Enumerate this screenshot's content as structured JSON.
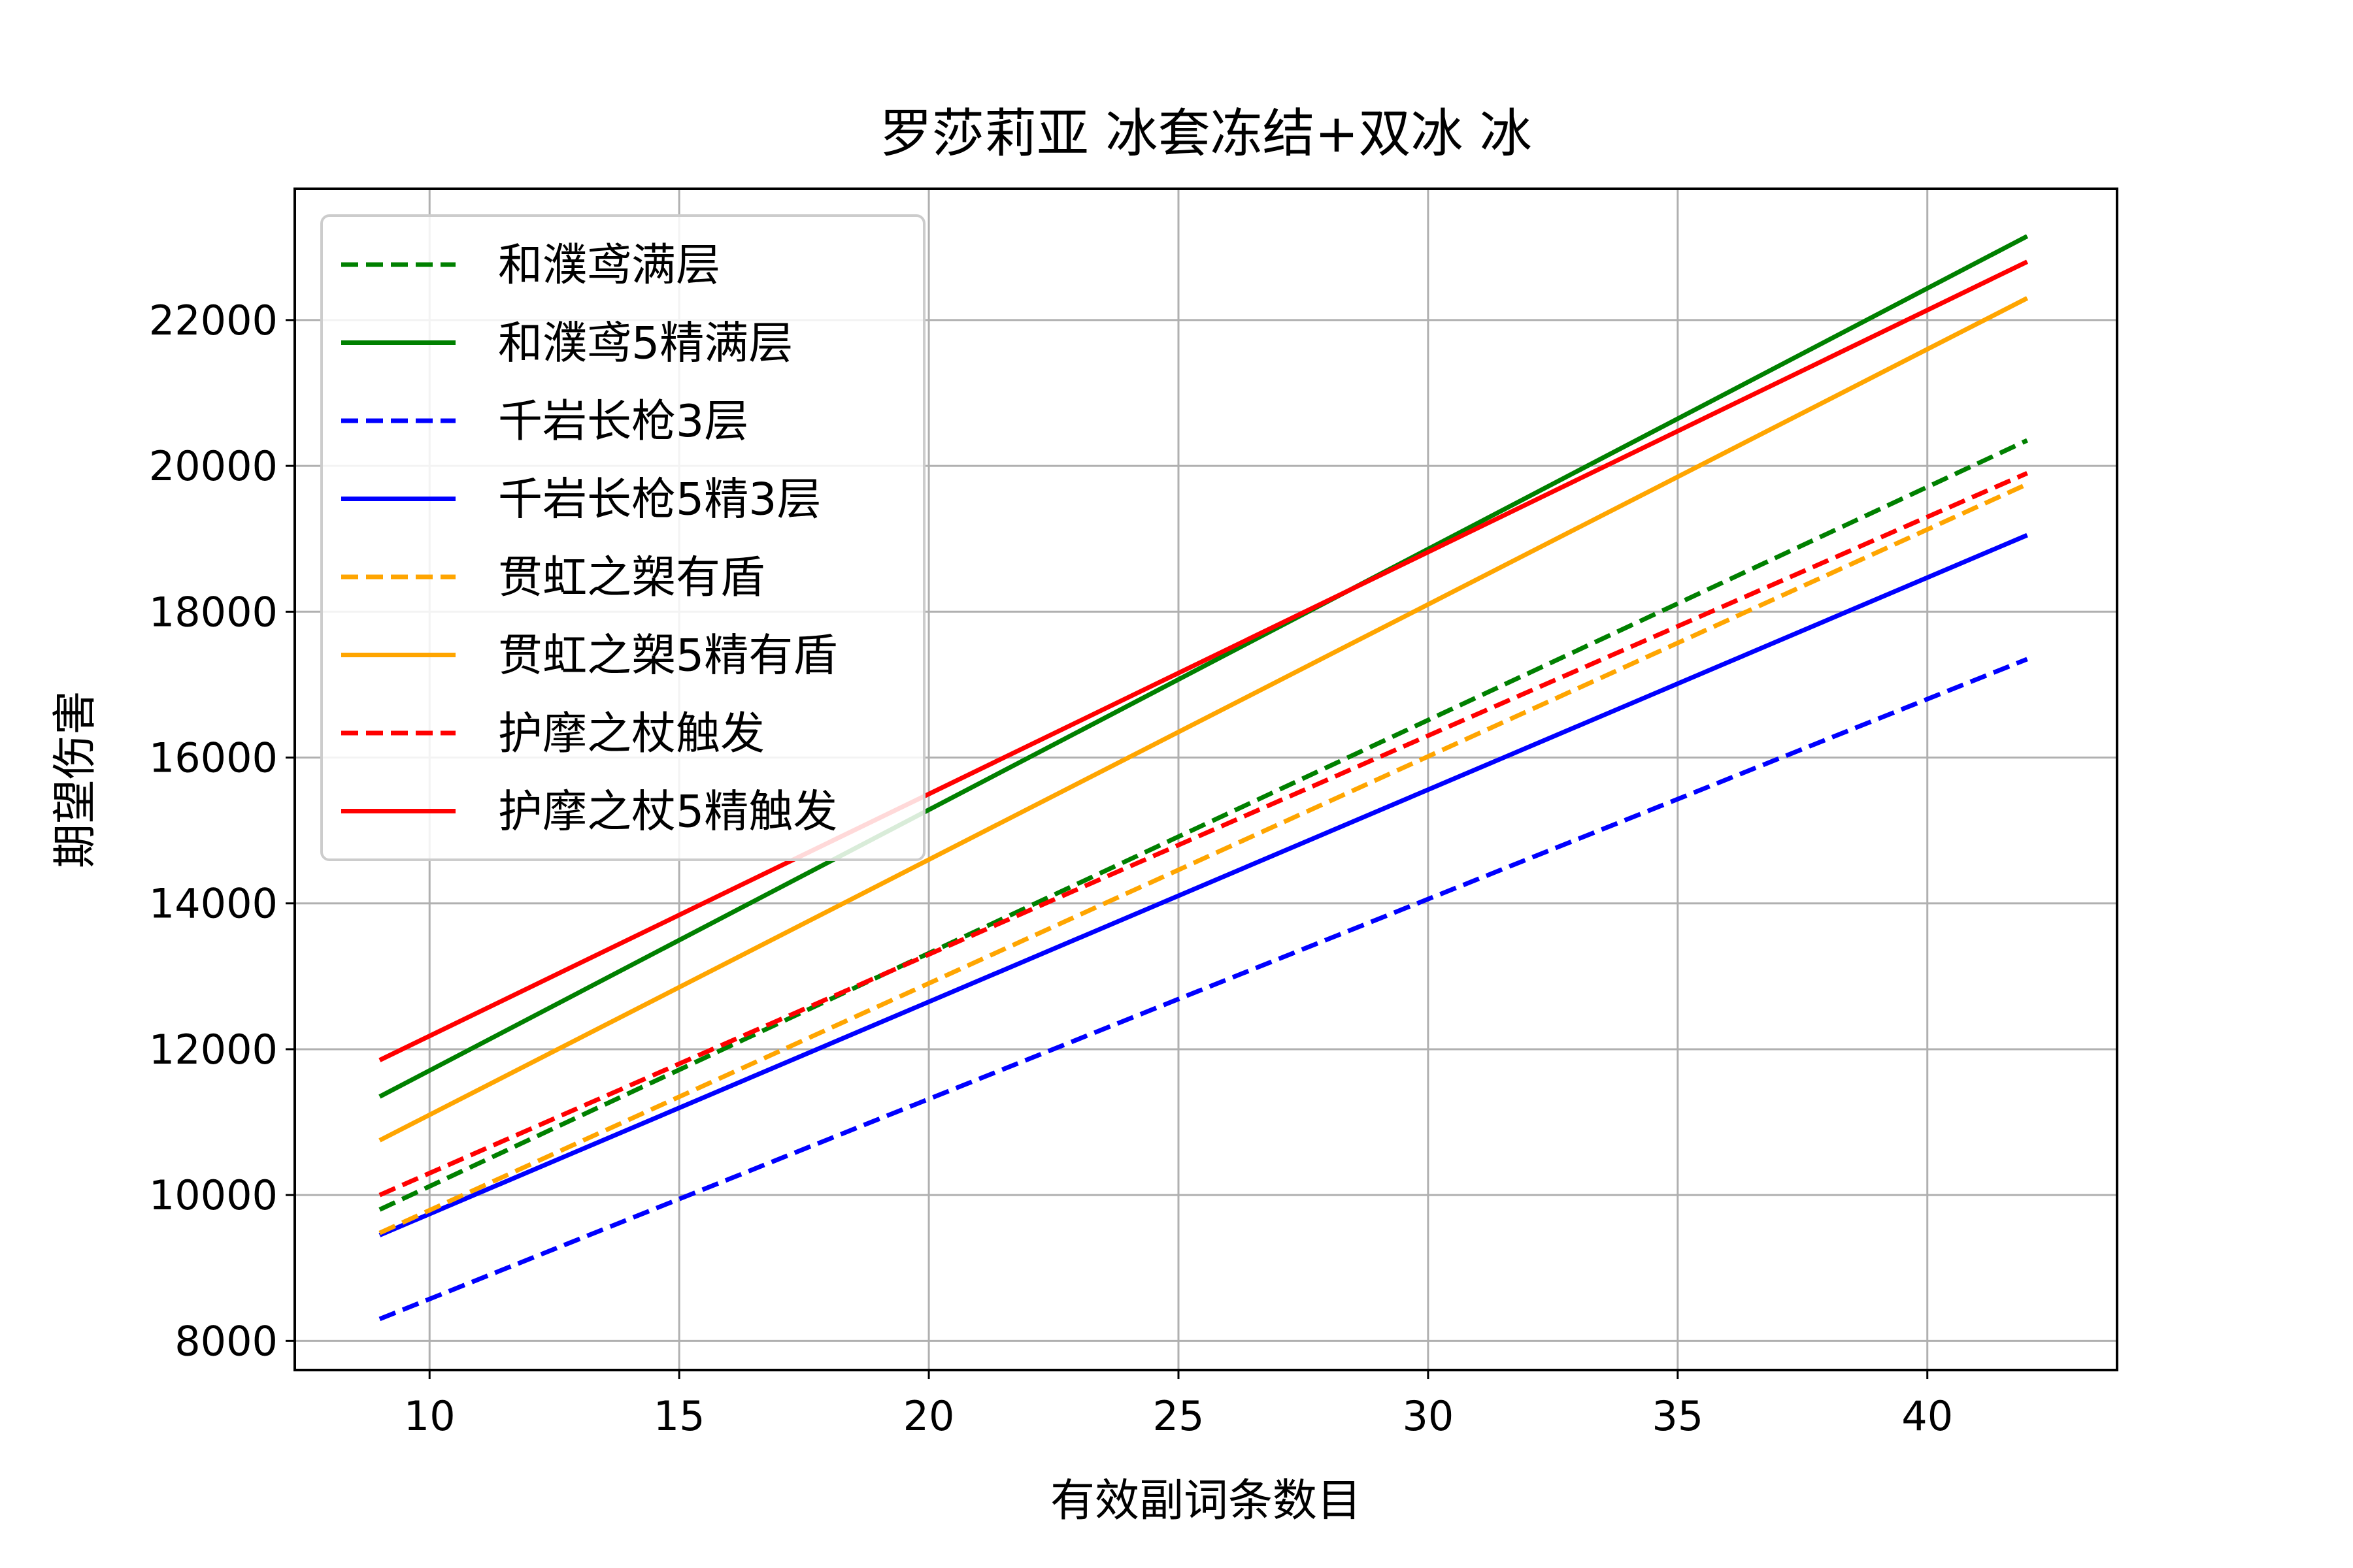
{
  "chart_data": {
    "type": "line",
    "title": "罗莎莉亚 冰套冻结+双冰 冰",
    "xlabel": "有效副词条数目",
    "ylabel": "期望伤害",
    "xlim": [
      7.3,
      43.8
    ],
    "ylim": [
      7600,
      23800
    ],
    "xticks": [
      10,
      15,
      20,
      25,
      30,
      35,
      40
    ],
    "yticks": [
      8000,
      10000,
      12000,
      14000,
      16000,
      18000,
      20000,
      22000
    ],
    "grid": true,
    "legend_position": "upper-left",
    "x": [
      9,
      42
    ],
    "series": [
      {
        "name": "和濮鸢满层",
        "color": "#008000",
        "dashed": true,
        "values": [
          9800,
          20350
        ]
      },
      {
        "name": "和濮鸢5精满层",
        "color": "#008000",
        "dashed": false,
        "values": [
          11350,
          23150
        ]
      },
      {
        "name": "千岩长枪3层",
        "color": "#0000ff",
        "dashed": true,
        "values": [
          8300,
          17350
        ]
      },
      {
        "name": "千岩长枪5精3层",
        "color": "#0000ff",
        "dashed": false,
        "values": [
          9450,
          19050
        ]
      },
      {
        "name": "贯虹之槊有盾",
        "color": "#ffa500",
        "dashed": true,
        "values": [
          9480,
          19750
        ]
      },
      {
        "name": "贯虹之槊5精有盾",
        "color": "#ffa500",
        "dashed": false,
        "values": [
          10750,
          22300
        ]
      },
      {
        "name": "护摩之杖触发",
        "color": "#ff0000",
        "dashed": true,
        "values": [
          10000,
          19900
        ]
      },
      {
        "name": "护摩之杖5精触发",
        "color": "#ff0000",
        "dashed": false,
        "values": [
          11850,
          22800
        ]
      }
    ]
  }
}
